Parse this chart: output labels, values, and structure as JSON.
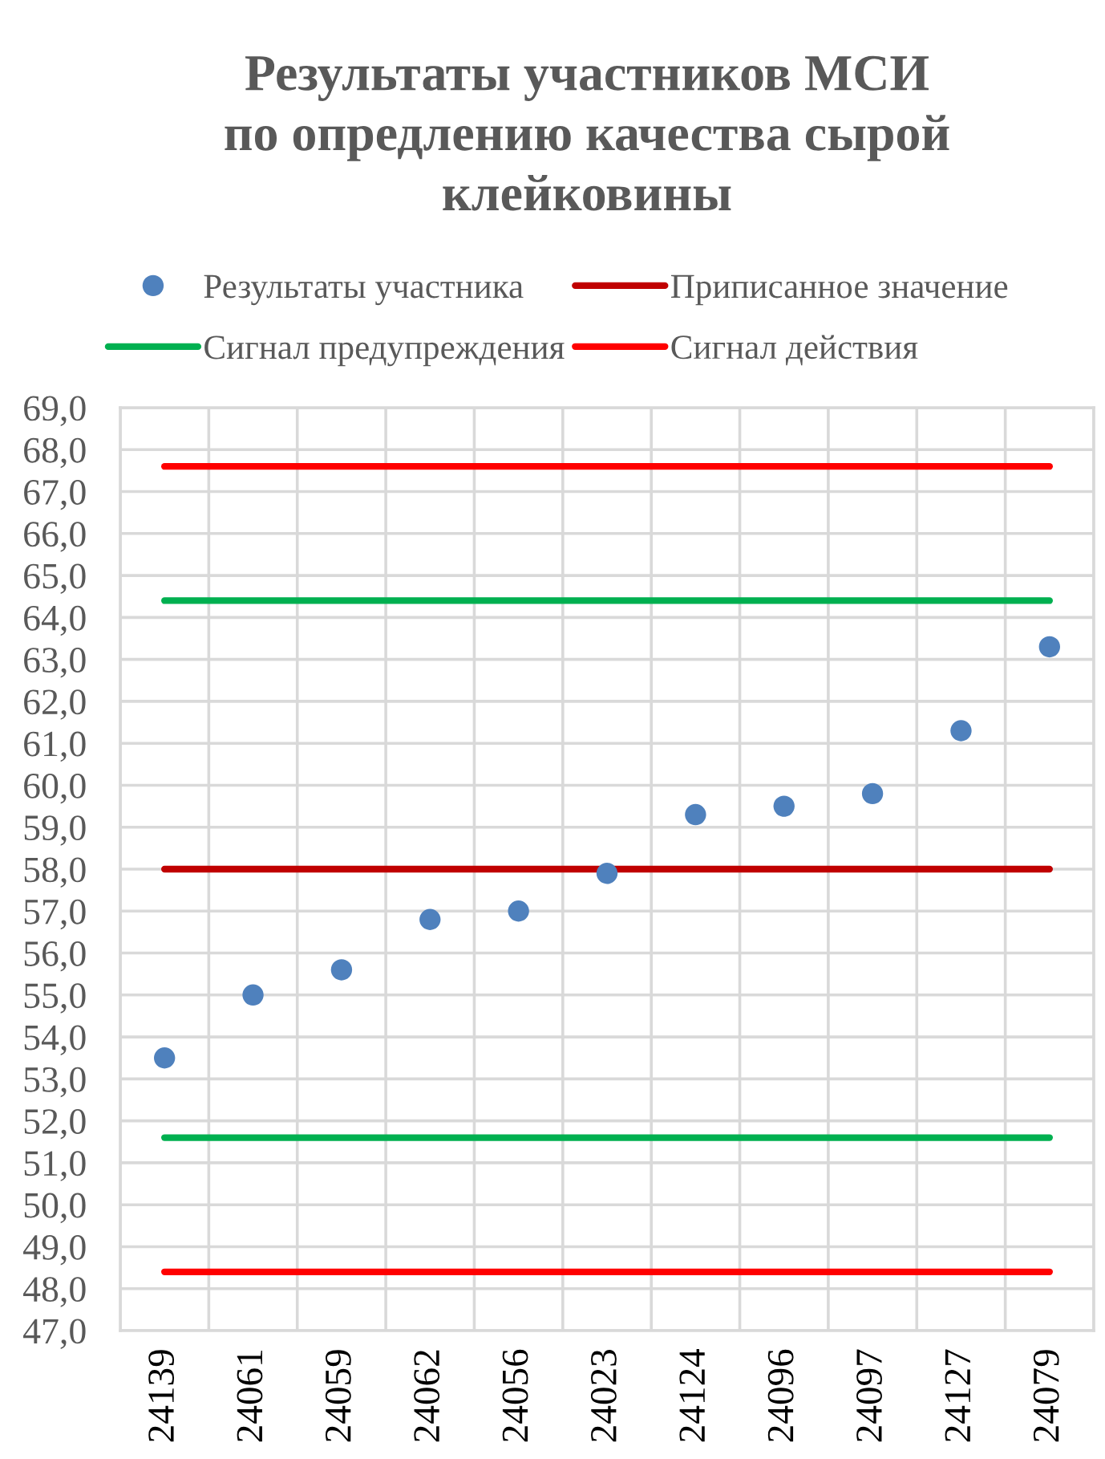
{
  "chart_data": {
    "type": "scatter",
    "title": "Результаты участников МСИ\nпо опредлению качества сырой\nклейковины",
    "categories": [
      "24139",
      "24061",
      "24059",
      "24062",
      "24056",
      "24023",
      "24124",
      "24096",
      "24097",
      "24127",
      "24079"
    ],
    "series": [
      {
        "name": "Результаты участника",
        "marker": "circle",
        "color": "#4f81bd",
        "values": [
          53.5,
          55.0,
          55.6,
          56.8,
          57.0,
          57.9,
          59.3,
          59.5,
          59.8,
          61.3,
          63.3
        ]
      },
      {
        "name": "Приписанное значение",
        "type": "line",
        "line_style": "solid",
        "color": "#c00000",
        "values": [
          58.0,
          58.0,
          58.0,
          58.0,
          58.0,
          58.0,
          58.0,
          58.0,
          58.0,
          58.0,
          58.0
        ]
      },
      {
        "name": "Сигнал предупреждения",
        "type": "line",
        "line_style": "solid",
        "color": "#00b050",
        "values": [
          64.4,
          64.4,
          64.4,
          64.4,
          64.4,
          64.4,
          64.4,
          64.4,
          64.4,
          64.4,
          64.4
        ]
      },
      {
        "type": "line",
        "line_style": "solid",
        "color": "#00b050",
        "values": [
          51.6,
          51.6,
          51.6,
          51.6,
          51.6,
          51.6,
          51.6,
          51.6,
          51.6,
          51.6,
          51.6
        ]
      },
      {
        "name": "Сигнал действия",
        "type": "line",
        "line_style": "solid",
        "color": "#ff0000",
        "values": [
          67.6,
          67.6,
          67.6,
          67.6,
          67.6,
          67.6,
          67.6,
          67.6,
          67.6,
          67.6,
          67.6
        ]
      },
      {
        "type": "line",
        "line_style": "solid",
        "color": "#ff0000",
        "values": [
          48.4,
          48.4,
          48.4,
          48.4,
          48.4,
          48.4,
          48.4,
          48.4,
          48.4,
          48.4,
          48.4
        ]
      }
    ],
    "ylim": [
      47,
      69
    ],
    "yticks": [
      {
        "value": 47,
        "label": "47,0"
      },
      {
        "value": 48,
        "label": "48,0"
      },
      {
        "value": 49,
        "label": "49,0"
      },
      {
        "value": 50,
        "label": "50,0"
      },
      {
        "value": 51,
        "label": "51,0"
      },
      {
        "value": 52,
        "label": "52,0"
      },
      {
        "value": 53,
        "label": "53,0"
      },
      {
        "value": 54,
        "label": "54,0"
      },
      {
        "value": 55,
        "label": "55,0"
      },
      {
        "value": 56,
        "label": "56,0"
      },
      {
        "value": 57,
        "label": "57,0"
      },
      {
        "value": 58,
        "label": "58,0"
      },
      {
        "value": 59,
        "label": "59,0"
      },
      {
        "value": 60,
        "label": "60,0"
      },
      {
        "value": 61,
        "label": "61,0"
      },
      {
        "value": 62,
        "label": "62,0"
      },
      {
        "value": 63,
        "label": "63,0"
      },
      {
        "value": 64,
        "label": "64,0"
      },
      {
        "value": 65,
        "label": "65,0"
      },
      {
        "value": 66,
        "label": "66,0"
      },
      {
        "value": 67,
        "label": "67,0"
      },
      {
        "value": 68,
        "label": "68,0"
      },
      {
        "value": 69,
        "label": "69,0"
      }
    ],
    "grid": true,
    "legend": "top"
  }
}
